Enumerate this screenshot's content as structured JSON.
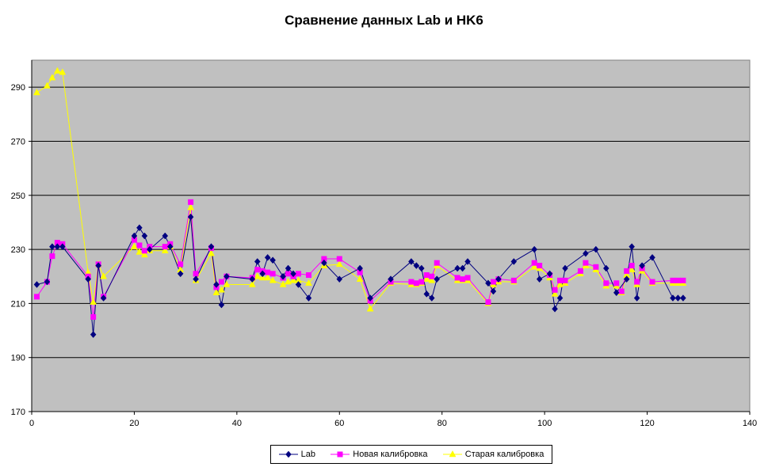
{
  "chart_data": {
    "type": "line",
    "title": "Сравнение данных Lab и HK6",
    "xlabel": "",
    "ylabel": "",
    "xlim": [
      0,
      140
    ],
    "ylim": [
      170,
      300
    ],
    "x_ticks": [
      "0",
      "20",
      "40",
      "60",
      "80",
      "100",
      "120",
      "140"
    ],
    "y_ticks": [
      "170",
      "190",
      "210",
      "230",
      "250",
      "270",
      "290"
    ],
    "grid": "horizontal",
    "legend": "bottom",
    "colors": {
      "plot_bg": "#C0C0C0",
      "Lab": "#000080",
      "Новая калибровка": "#FF00FF",
      "Старая калибровка": "#FFFF00"
    },
    "series": [
      {
        "name": "Lab",
        "color": "#000080",
        "marker": "diamond",
        "points": [
          [
            1,
            217
          ],
          [
            3,
            218
          ],
          [
            4,
            231
          ],
          [
            5,
            231
          ],
          [
            6,
            231
          ],
          [
            11,
            219
          ],
          [
            12,
            198.5
          ],
          [
            13,
            224
          ],
          [
            14,
            212
          ],
          [
            20,
            235
          ],
          [
            21,
            238
          ],
          [
            22,
            235
          ],
          [
            23,
            230
          ],
          [
            26,
            235
          ],
          [
            27,
            231
          ],
          [
            29,
            221
          ],
          [
            31,
            242
          ],
          [
            32,
            219
          ],
          [
            35,
            231
          ],
          [
            36,
            217
          ],
          [
            37,
            209.5
          ],
          [
            38,
            220
          ],
          [
            43,
            219
          ],
          [
            44,
            225.5
          ],
          [
            45,
            221
          ],
          [
            46,
            227
          ],
          [
            47,
            226
          ],
          [
            49,
            220
          ],
          [
            50,
            223
          ],
          [
            51,
            221
          ],
          [
            52,
            217
          ],
          [
            54,
            212
          ],
          [
            57,
            225
          ],
          [
            60,
            219
          ],
          [
            64,
            223
          ],
          [
            66,
            212
          ],
          [
            70,
            219
          ],
          [
            74,
            225.5
          ],
          [
            75,
            224
          ],
          [
            76,
            223
          ],
          [
            77,
            213.5
          ],
          [
            78,
            212
          ],
          [
            79,
            219
          ],
          [
            83,
            223
          ],
          [
            84,
            223
          ],
          [
            85,
            225.5
          ],
          [
            89,
            217.5
          ],
          [
            90,
            214.5
          ],
          [
            91,
            219
          ],
          [
            94,
            225.5
          ],
          [
            98,
            230
          ],
          [
            99,
            219
          ],
          [
            101,
            221
          ],
          [
            102,
            208
          ],
          [
            103,
            212
          ],
          [
            104,
            223
          ],
          [
            108,
            228.5
          ],
          [
            110,
            230
          ],
          [
            112,
            223
          ],
          [
            114,
            214
          ],
          [
            116,
            219
          ],
          [
            117,
            231
          ],
          [
            118,
            212
          ],
          [
            119,
            224
          ],
          [
            121,
            227
          ],
          [
            125,
            212
          ],
          [
            126,
            212
          ],
          [
            127,
            212
          ]
        ]
      },
      {
        "name": "Новая калибровка",
        "color": "#FF00FF",
        "marker": "square",
        "points": [
          [
            1,
            212.5
          ],
          [
            3,
            218
          ],
          [
            4,
            227.5
          ],
          [
            5,
            232.5
          ],
          [
            6,
            232
          ],
          [
            11,
            220
          ],
          [
            12,
            205
          ],
          [
            13,
            224.5
          ],
          [
            14,
            212.5
          ],
          [
            20,
            233.5
          ],
          [
            21,
            231.5
          ],
          [
            22,
            229.5
          ],
          [
            23,
            231
          ],
          [
            26,
            231
          ],
          [
            27,
            232
          ],
          [
            29,
            224.5
          ],
          [
            31,
            247.5
          ],
          [
            32,
            221
          ],
          [
            35,
            230.5
          ],
          [
            36,
            216
          ],
          [
            37,
            218
          ],
          [
            38,
            220
          ],
          [
            43,
            219.5
          ],
          [
            44,
            222.5
          ],
          [
            45,
            222
          ],
          [
            46,
            221.5
          ],
          [
            47,
            221
          ],
          [
            49,
            219.5
          ],
          [
            50,
            221
          ],
          [
            51,
            220
          ],
          [
            52,
            221
          ],
          [
            54,
            220.5
          ],
          [
            57,
            226.5
          ],
          [
            60,
            226.5
          ],
          [
            64,
            221.5
          ],
          [
            66,
            211
          ],
          [
            70,
            218
          ],
          [
            74,
            218
          ],
          [
            75,
            217.5
          ],
          [
            76,
            218
          ],
          [
            77,
            220.5
          ],
          [
            78,
            220
          ],
          [
            79,
            225
          ],
          [
            83,
            219.5
          ],
          [
            84,
            219
          ],
          [
            85,
            219.5
          ],
          [
            89,
            210.5
          ],
          [
            90,
            218
          ],
          [
            91,
            219
          ],
          [
            94,
            218.5
          ],
          [
            98,
            225
          ],
          [
            99,
            224
          ],
          [
            101,
            220.5
          ],
          [
            102,
            215
          ],
          [
            103,
            218.5
          ],
          [
            104,
            218.5
          ],
          [
            107,
            222
          ],
          [
            108,
            225
          ],
          [
            110,
            223.5
          ],
          [
            112,
            217.5
          ],
          [
            114,
            217.5
          ],
          [
            115,
            214.5
          ],
          [
            116,
            222
          ],
          [
            117,
            224
          ],
          [
            118,
            218
          ],
          [
            119,
            223
          ],
          [
            121,
            218
          ],
          [
            125,
            218.5
          ],
          [
            126,
            218.5
          ],
          [
            127,
            218.5
          ]
        ]
      },
      {
        "name": "Старая калибровка",
        "color": "#FFFF00",
        "marker": "triangle",
        "points": [
          [
            1,
            288
          ],
          [
            3,
            290.5
          ],
          [
            4,
            293.5
          ],
          [
            5,
            296
          ],
          [
            6,
            295.5
          ],
          [
            11,
            221.5
          ],
          [
            12,
            210.5
          ],
          [
            13,
            224.5
          ],
          [
            14,
            220
          ],
          [
            20,
            231
          ],
          [
            21,
            229
          ],
          [
            22,
            228
          ],
          [
            23,
            229.5
          ],
          [
            26,
            229.5
          ],
          [
            27,
            231
          ],
          [
            29,
            222.5
          ],
          [
            31,
            245.5
          ],
          [
            32,
            218.5
          ],
          [
            35,
            228.5
          ],
          [
            36,
            214
          ],
          [
            37,
            215
          ],
          [
            38,
            217
          ],
          [
            43,
            217
          ],
          [
            44,
            220
          ],
          [
            45,
            219.5
          ],
          [
            46,
            219.5
          ],
          [
            47,
            218.5
          ],
          [
            49,
            217
          ],
          [
            50,
            218
          ],
          [
            51,
            218.5
          ],
          [
            52,
            218.5
          ],
          [
            54,
            217.5
          ],
          [
            57,
            224
          ],
          [
            60,
            224.5
          ],
          [
            64,
            219
          ],
          [
            66,
            208
          ],
          [
            70,
            217.5
          ],
          [
            74,
            217
          ],
          [
            75,
            217
          ],
          [
            76,
            217.5
          ],
          [
            77,
            219
          ],
          [
            78,
            218.5
          ],
          [
            79,
            224
          ],
          [
            83,
            218.5
          ],
          [
            84,
            218.5
          ],
          [
            85,
            218.5
          ],
          [
            89,
            210
          ],
          [
            90,
            217
          ],
          [
            91,
            218
          ],
          [
            94,
            218
          ],
          [
            98,
            223.5
          ],
          [
            99,
            223
          ],
          [
            101,
            219.5
          ],
          [
            102,
            213.5
          ],
          [
            103,
            217
          ],
          [
            104,
            217.5
          ],
          [
            107,
            221
          ],
          [
            108,
            224
          ],
          [
            110,
            222.5
          ],
          [
            112,
            216.5
          ],
          [
            114,
            216.5
          ],
          [
            115,
            214
          ],
          [
            116,
            220.5
          ],
          [
            117,
            222.5
          ],
          [
            118,
            217
          ],
          [
            119,
            222
          ],
          [
            121,
            217.5
          ],
          [
            125,
            217.5
          ],
          [
            126,
            217.5
          ],
          [
            127,
            217.5
          ]
        ]
      }
    ]
  }
}
